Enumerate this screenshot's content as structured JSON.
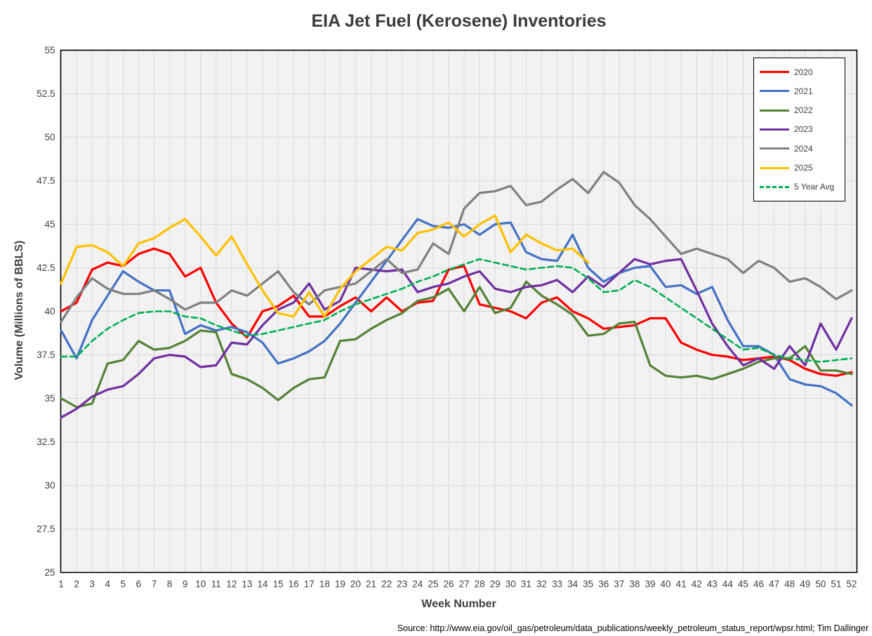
{
  "chart_data": {
    "type": "line",
    "title": "EIA Jet Fuel (Kerosene) Inventories",
    "xlabel": "Week Number",
    "ylabel": "Volume (Millions of BBLS)",
    "source_note": "Source: http://www.eia.gov/oil_gas/petroleum/data_publications/weekly_petroleum_status_report/wpsr.html; Tim Dallinger",
    "xlim": [
      1,
      52
    ],
    "ylim": [
      25,
      55
    ],
    "grid": "both",
    "legend_position": "top-right",
    "plot_bg_color": "#f2f2f2",
    "gridline_color": "#d9d9d9",
    "text_color": "#404040",
    "x_ticks": [
      1,
      2,
      3,
      4,
      5,
      6,
      7,
      8,
      9,
      10,
      11,
      12,
      13,
      14,
      15,
      16,
      17,
      18,
      19,
      20,
      21,
      22,
      23,
      24,
      25,
      26,
      27,
      28,
      29,
      30,
      31,
      32,
      33,
      34,
      35,
      36,
      37,
      38,
      39,
      40,
      41,
      42,
      43,
      44,
      45,
      46,
      47,
      48,
      49,
      50,
      51,
      52
    ],
    "y_ticks": [
      25,
      27.5,
      30,
      32.5,
      35,
      37.5,
      40,
      42.5,
      45,
      47.5,
      50,
      52.5,
      55
    ],
    "series": [
      {
        "name": "2020",
        "color": "#ff0000",
        "dashed": false,
        "values": [
          40.0,
          40.5,
          42.4,
          42.8,
          42.6,
          43.3,
          43.6,
          43.3,
          42.0,
          42.5,
          40.5,
          39.3,
          38.5,
          40.0,
          40.3,
          40.9,
          39.7,
          39.7,
          40.3,
          40.8,
          40.0,
          40.8,
          40.0,
          40.5,
          40.6,
          42.4,
          42.6,
          40.4,
          40.2,
          40.0,
          39.6,
          40.5,
          40.8,
          40.0,
          39.6,
          39.0,
          39.1,
          39.2,
          39.6,
          39.6,
          38.2,
          37.8,
          37.5,
          37.4,
          37.2,
          37.3,
          37.4,
          37.2,
          36.7,
          36.4,
          36.3,
          36.5
        ]
      },
      {
        "name": "2021",
        "color": "#4472c4",
        "dashed": false,
        "values": [
          38.9,
          37.3,
          39.5,
          40.9,
          42.3,
          41.7,
          41.2,
          41.2,
          38.7,
          39.2,
          38.9,
          39.1,
          38.8,
          38.2,
          37.0,
          37.3,
          37.7,
          38.3,
          39.3,
          40.5,
          41.7,
          42.9,
          44.1,
          45.3,
          44.9,
          44.8,
          45.0,
          44.4,
          45.0,
          45.1,
          43.4,
          43.0,
          42.9,
          44.4,
          42.5,
          41.7,
          42.2,
          42.5,
          42.6,
          41.4,
          41.5,
          41.0,
          41.4,
          39.5,
          38.0,
          38.0,
          37.5,
          36.1,
          35.8,
          35.7,
          35.3,
          34.6
        ]
      },
      {
        "name": "2022",
        "color": "#548235",
        "dashed": false,
        "values": [
          35.0,
          34.5,
          34.7,
          37.0,
          37.2,
          38.3,
          37.8,
          37.9,
          38.3,
          38.9,
          38.8,
          36.4,
          36.1,
          35.6,
          34.9,
          35.6,
          36.1,
          36.2,
          38.3,
          38.4,
          39.0,
          39.5,
          39.9,
          40.6,
          40.8,
          41.3,
          40.0,
          41.4,
          39.9,
          40.2,
          41.7,
          40.9,
          40.4,
          39.8,
          38.6,
          38.7,
          39.3,
          39.4,
          36.9,
          36.3,
          36.2,
          36.3,
          36.1,
          36.4,
          36.7,
          37.1,
          37.3,
          37.3,
          38.0,
          36.6,
          36.6,
          36.4
        ]
      },
      {
        "name": "2023",
        "color": "#7030a0",
        "dashed": false,
        "values": [
          33.9,
          34.4,
          35.1,
          35.5,
          35.7,
          36.4,
          37.3,
          37.5,
          37.4,
          36.8,
          36.9,
          38.2,
          38.1,
          39.2,
          40.1,
          40.5,
          41.6,
          40.1,
          40.6,
          42.5,
          42.4,
          42.3,
          42.4,
          41.1,
          41.4,
          41.6,
          42.0,
          42.3,
          41.3,
          41.1,
          41.4,
          41.5,
          41.8,
          41.1,
          42.0,
          41.4,
          42.2,
          43.0,
          42.7,
          42.9,
          43.0,
          41.2,
          39.3,
          38.0,
          36.9,
          37.3,
          36.7,
          38.0,
          36.9,
          39.3,
          37.8,
          39.6
        ]
      },
      {
        "name": "2024",
        "color": "#808080",
        "dashed": false,
        "values": [
          39.4,
          40.8,
          41.9,
          41.3,
          41.0,
          41.0,
          41.2,
          40.7,
          40.1,
          40.5,
          40.5,
          41.2,
          40.9,
          41.6,
          42.3,
          41.1,
          40.4,
          41.2,
          41.4,
          41.6,
          42.3,
          43.0,
          42.2,
          42.4,
          43.9,
          43.3,
          45.9,
          46.8,
          46.9,
          47.2,
          46.1,
          46.3,
          47.0,
          47.6,
          46.8,
          48.0,
          47.4,
          46.1,
          45.3,
          44.3,
          43.3,
          43.6,
          43.3,
          43.0,
          42.2,
          42.9,
          42.5,
          41.7,
          41.9,
          41.4,
          40.7,
          41.2
        ]
      },
      {
        "name": "2025",
        "color": "#ffc000",
        "dashed": false,
        "values": [
          41.6,
          43.7,
          43.8,
          43.4,
          42.6,
          43.9,
          44.2,
          44.8,
          45.3,
          44.3,
          43.2,
          44.3,
          42.7,
          41.2,
          39.9,
          39.7,
          41.1,
          39.7,
          41.3,
          42.3,
          43.0,
          43.7,
          43.5,
          44.5,
          44.7,
          45.1,
          44.3,
          45.0,
          45.5,
          43.4,
          44.4,
          43.9,
          43.5,
          43.6,
          42.8
        ]
      },
      {
        "name": "5 Year Avg",
        "color": "#00b050",
        "dashed": true,
        "values": [
          37.4,
          37.4,
          38.3,
          39.0,
          39.5,
          39.9,
          40.0,
          40.0,
          39.7,
          39.6,
          39.2,
          38.9,
          38.6,
          38.7,
          38.9,
          39.1,
          39.3,
          39.5,
          40.0,
          40.4,
          40.7,
          41.0,
          41.3,
          41.7,
          42.0,
          42.4,
          42.7,
          43.0,
          42.8,
          42.6,
          42.4,
          42.5,
          42.6,
          42.5,
          41.9,
          41.1,
          41.2,
          41.8,
          41.4,
          40.8,
          40.2,
          39.6,
          39.0,
          38.4,
          37.8,
          37.9,
          37.5,
          37.3,
          37.2,
          37.1,
          37.2,
          37.3
        ]
      }
    ]
  }
}
